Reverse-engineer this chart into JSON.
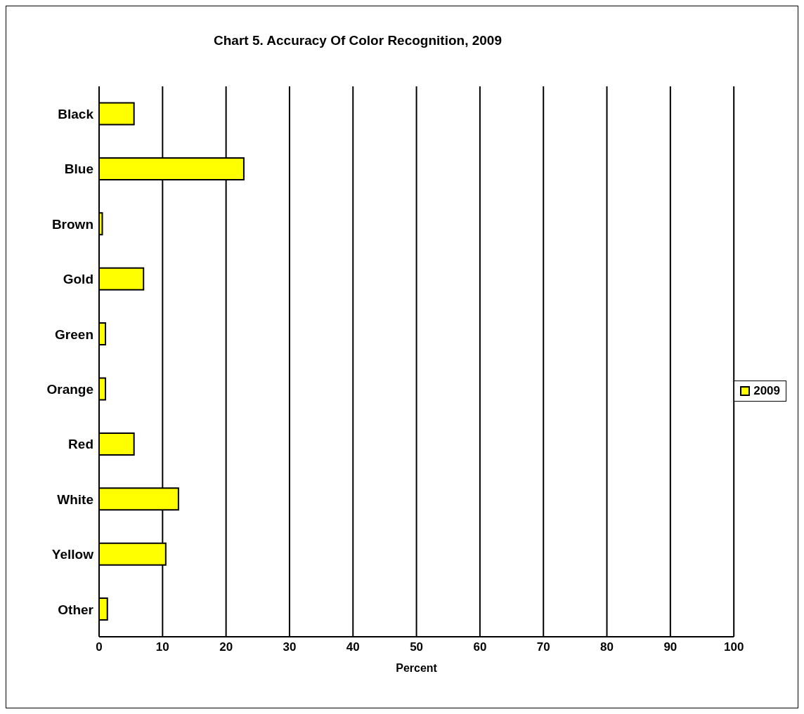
{
  "chart_data": {
    "type": "bar",
    "orientation": "horizontal",
    "title": "Chart 5.  Accuracy Of Color Recognition, 2009",
    "xlabel": "Percent",
    "categories": [
      "Black",
      "Blue",
      "Brown",
      "Gold",
      "Green",
      "Orange",
      "Red",
      "White",
      "Yellow",
      "Other"
    ],
    "series": [
      {
        "name": "2009",
        "color": "#ffff00",
        "values": [
          5.5,
          22.8,
          0.5,
          7.0,
          1.0,
          1.0,
          5.5,
          12.5,
          10.5,
          1.3
        ]
      }
    ],
    "xlim": [
      0,
      100
    ],
    "xticks": [
      0,
      10,
      20,
      30,
      40,
      50,
      60,
      70,
      80,
      90,
      100
    ],
    "grid": "x",
    "legend": "right"
  }
}
